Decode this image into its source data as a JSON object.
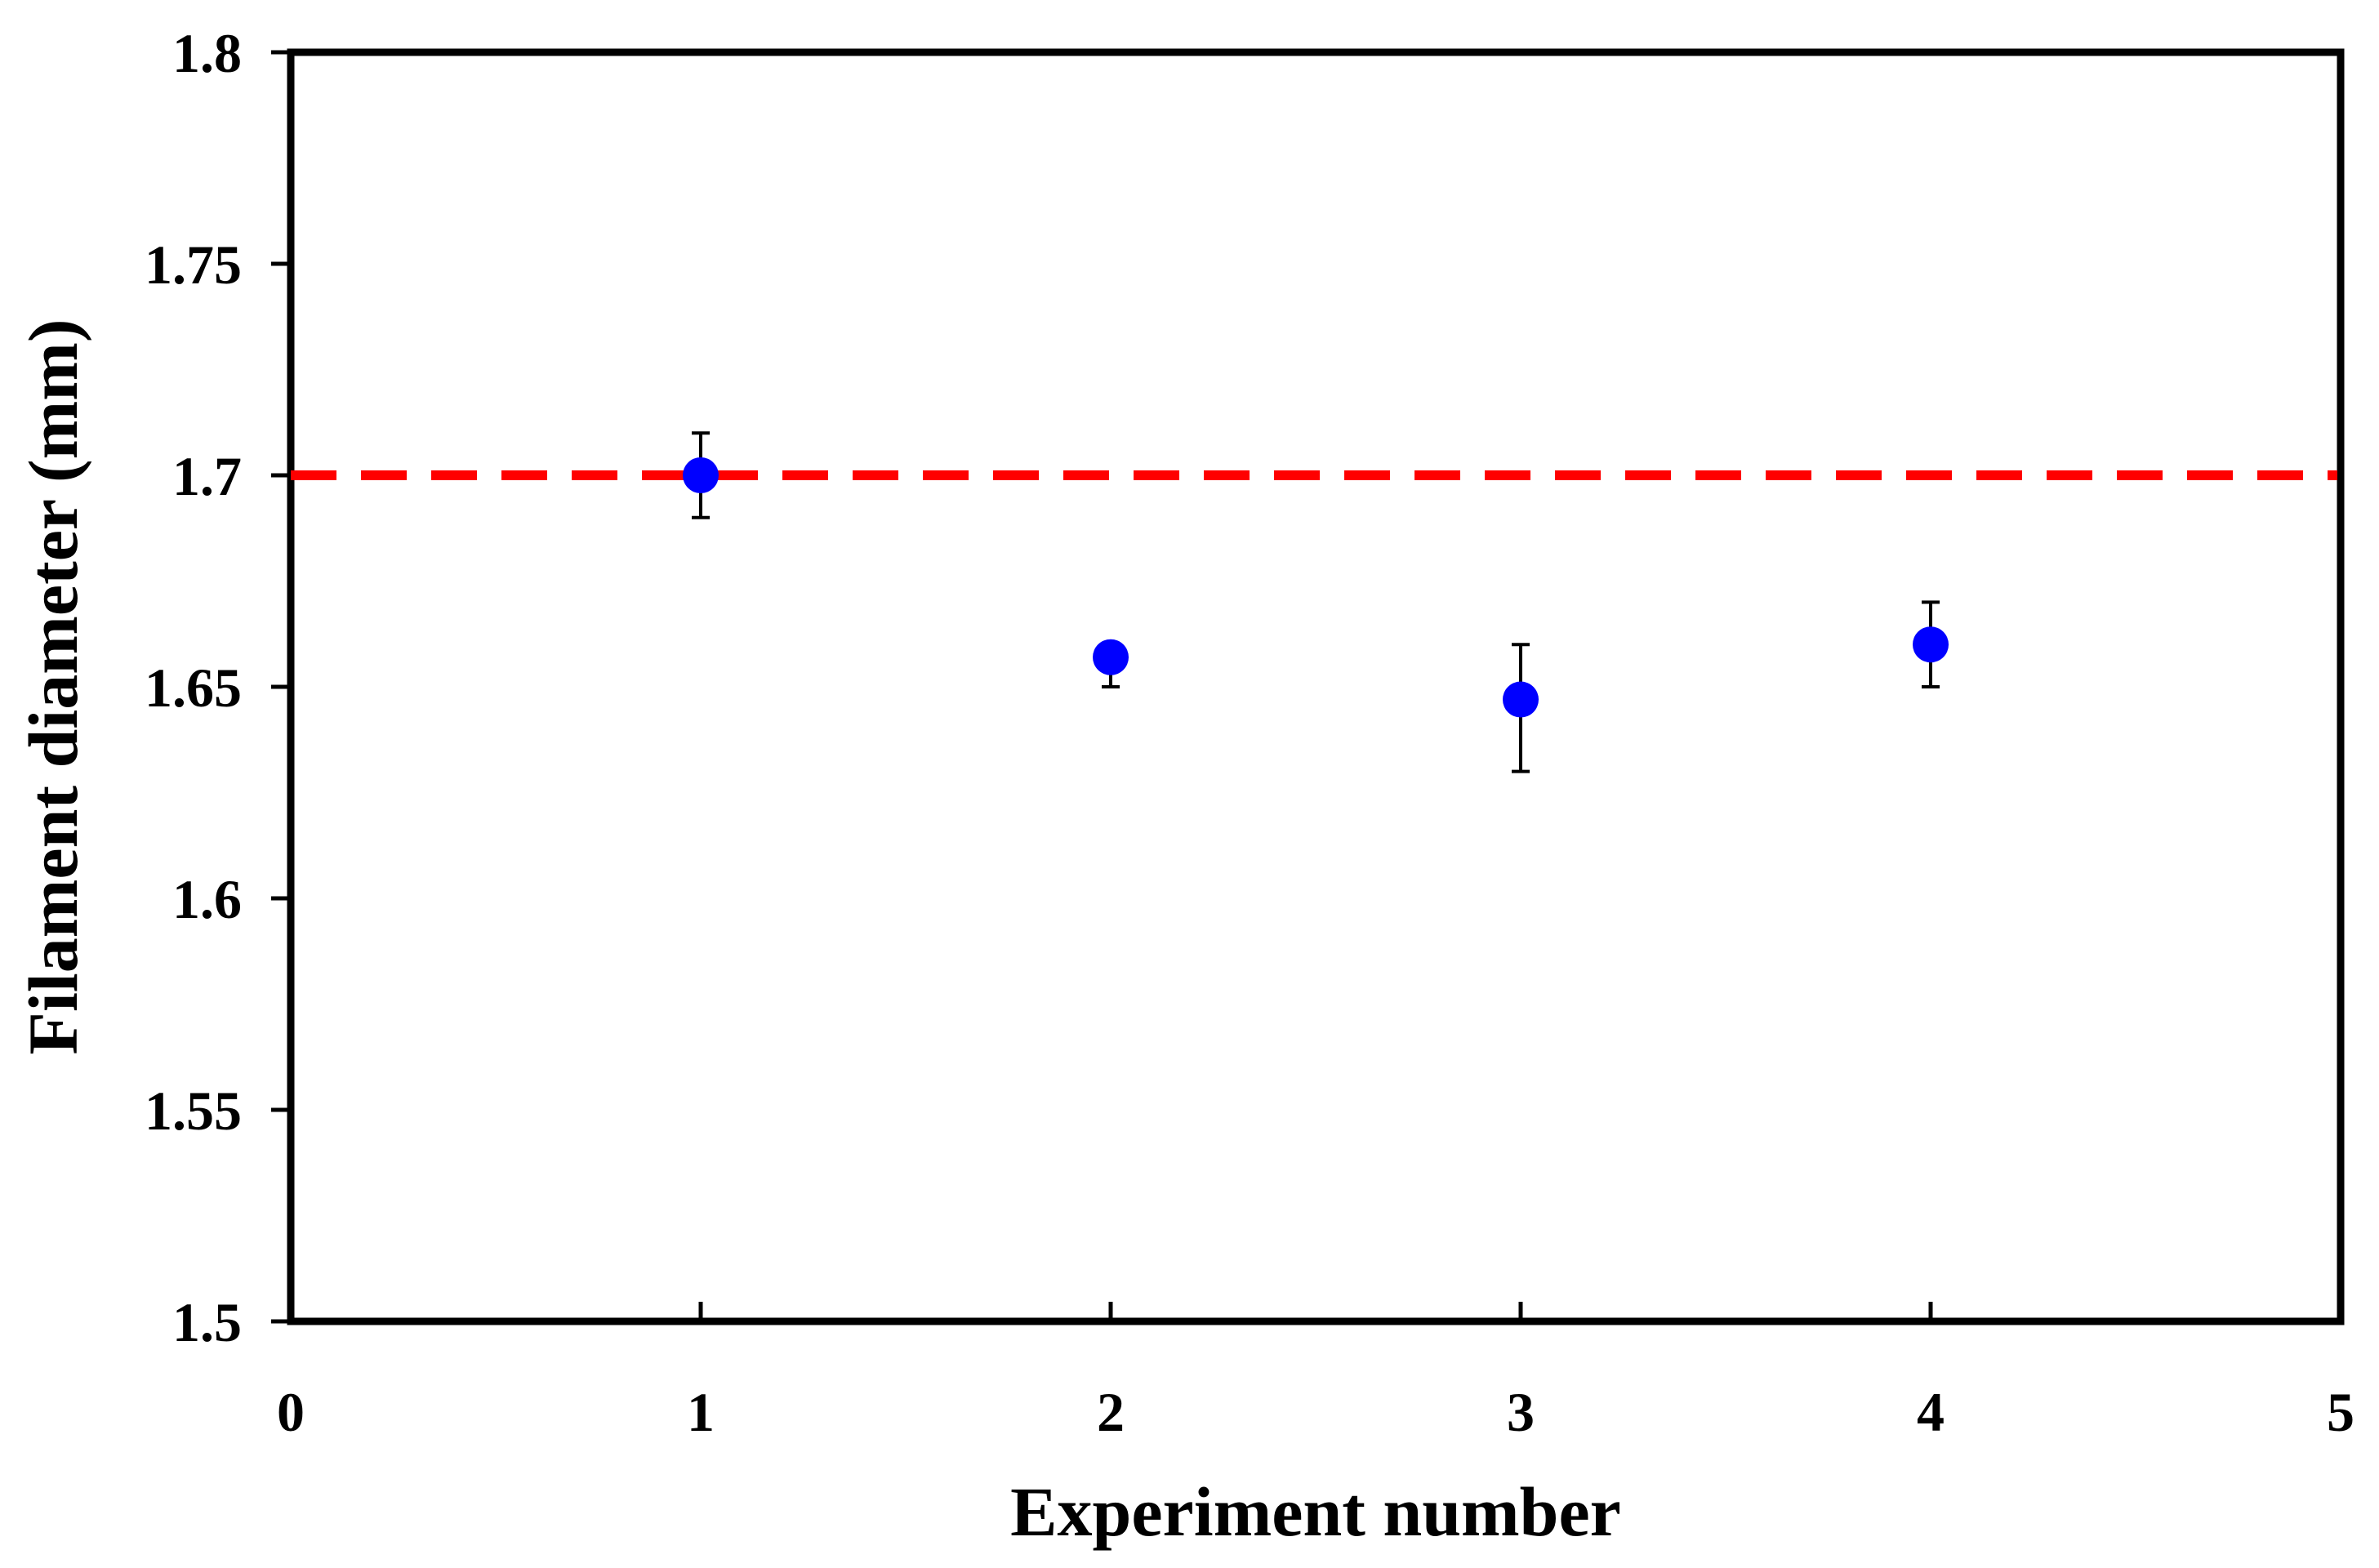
{
  "chart_data": {
    "type": "scatter",
    "title": "",
    "xlabel": "Experiment number",
    "ylabel": "Filament diameter (mm)",
    "xlim": [
      0,
      5
    ],
    "ylim": [
      1.5,
      1.8
    ],
    "x_ticks": [
      "0",
      "1",
      "2",
      "3",
      "4",
      "5"
    ],
    "y_ticks": [
      "1.5",
      "1.55",
      "1.6",
      "1.65",
      "1.7",
      "1.75",
      "1.8"
    ],
    "grid": false,
    "legend": "none",
    "series": [
      {
        "points": [
          {
            "x": 1,
            "y": 1.7,
            "err_low": 1.69,
            "err_high": 1.71
          },
          {
            "x": 2,
            "y": 1.657,
            "err_low": 1.65,
            "err_high": 1.657
          },
          {
            "x": 3,
            "y": 1.647,
            "err_low": 1.63,
            "err_high": 1.66
          },
          {
            "x": 4,
            "y": 1.66,
            "err_low": 1.65,
            "err_high": 1.67
          }
        ],
        "color": "#0000FF"
      }
    ],
    "reference_line": {
      "y": 1.7,
      "color": "#FF0000",
      "style": "dashed"
    }
  }
}
